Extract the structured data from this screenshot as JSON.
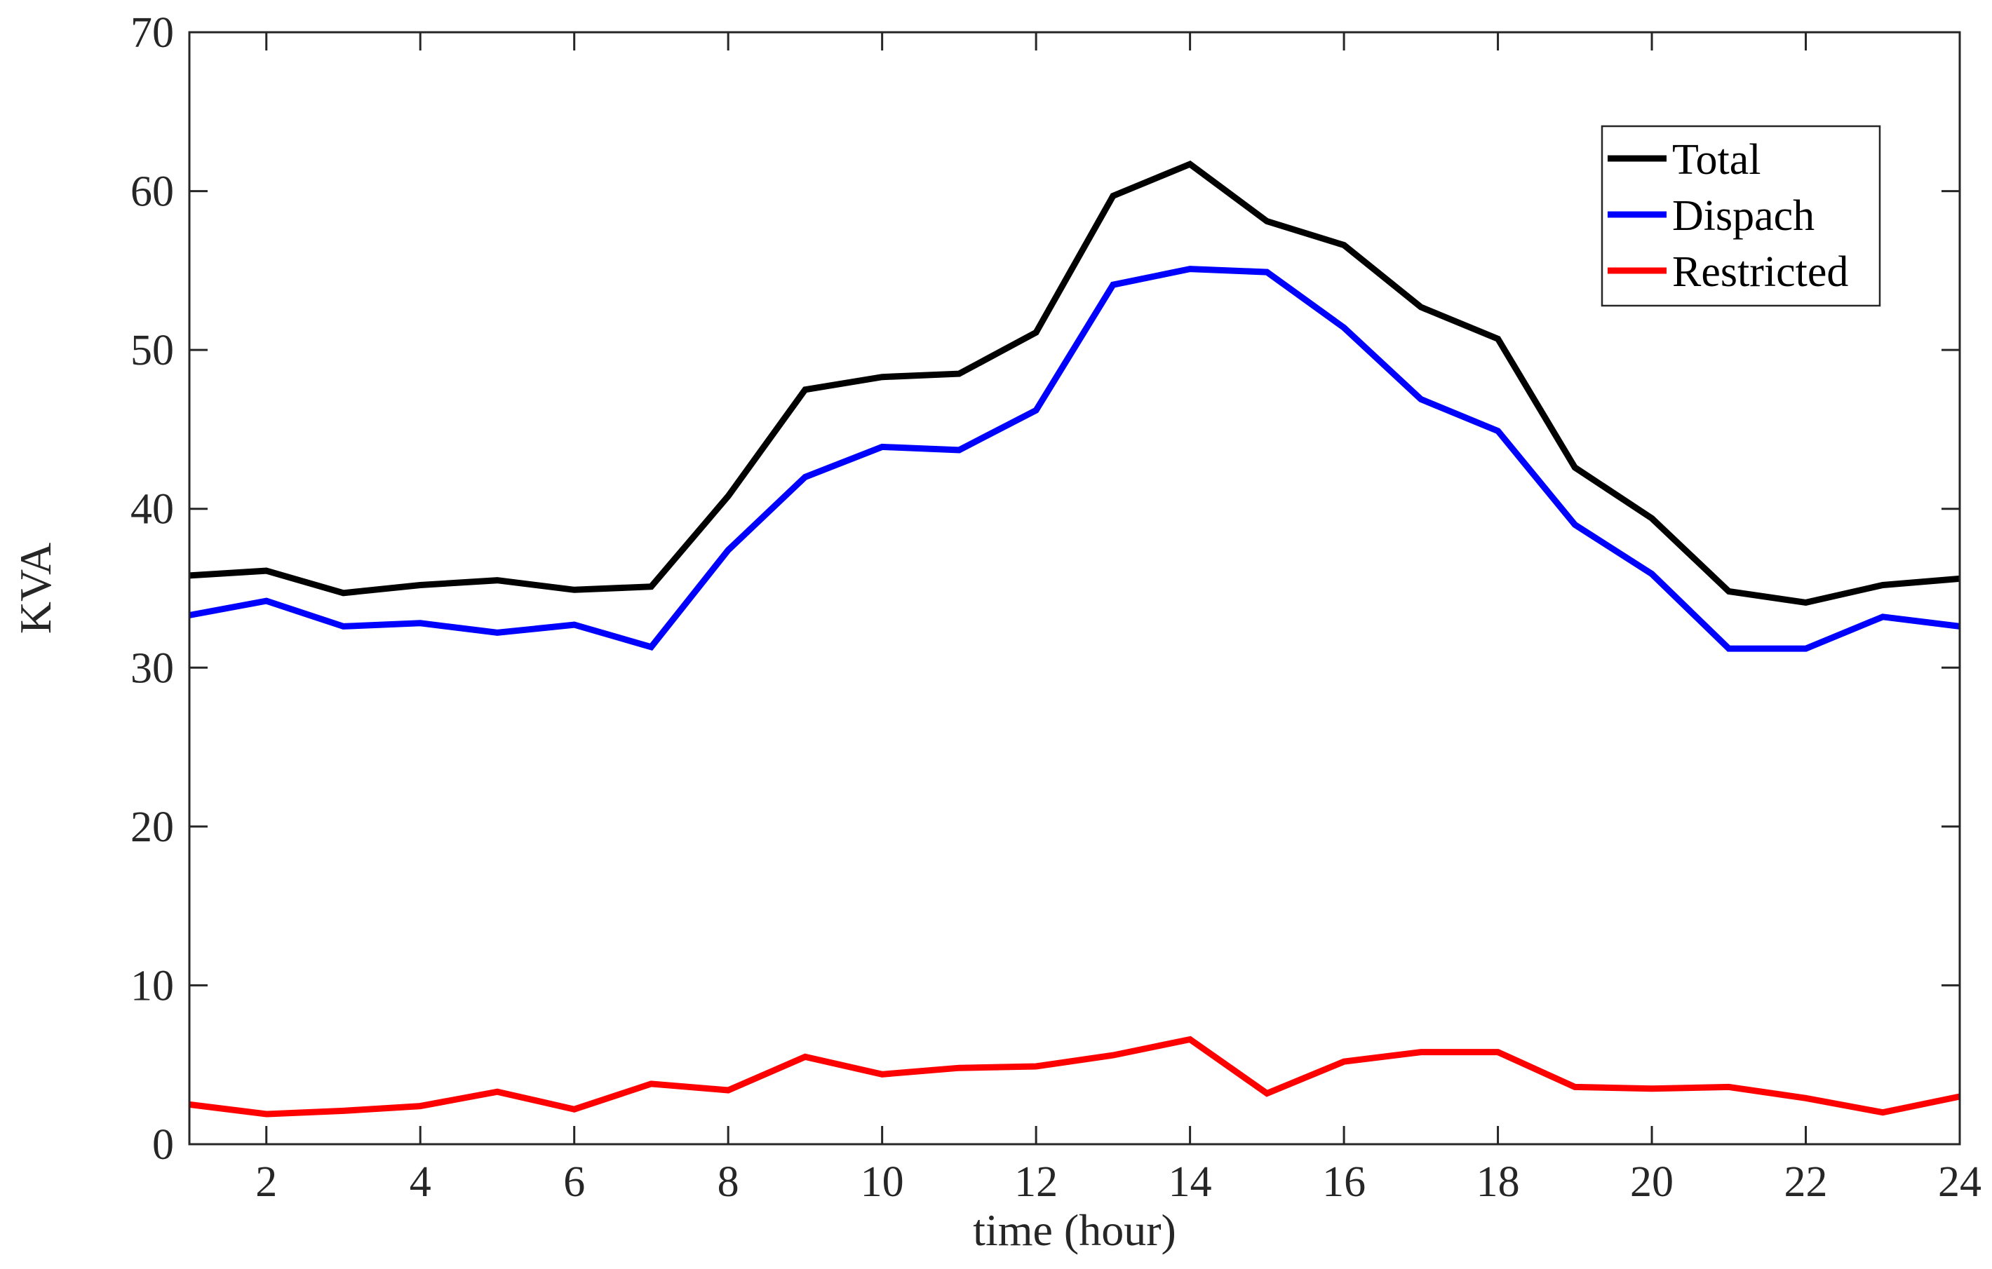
{
  "chart_data": {
    "type": "line",
    "title": "",
    "xlabel": "time (hour)",
    "ylabel": "KVA",
    "xlim": [
      1,
      24
    ],
    "ylim": [
      0,
      70
    ],
    "xticks": [
      2,
      4,
      6,
      8,
      10,
      12,
      14,
      16,
      18,
      20,
      22,
      24
    ],
    "yticks": [
      0,
      10,
      20,
      30,
      40,
      50,
      60,
      70
    ],
    "grid": false,
    "legend_position": "top-right",
    "x": [
      1,
      2,
      3,
      4,
      5,
      6,
      7,
      8,
      9,
      10,
      11,
      12,
      13,
      14,
      15,
      16,
      17,
      18,
      19,
      20,
      21,
      22,
      23,
      24
    ],
    "series": [
      {
        "name": "Total",
        "color": "#000000",
        "values": [
          35.8,
          36.1,
          34.7,
          35.2,
          35.5,
          34.9,
          35.1,
          40.8,
          47.5,
          48.3,
          48.5,
          51.1,
          59.7,
          61.7,
          58.1,
          56.6,
          52.7,
          50.7,
          42.6,
          39.4,
          34.8,
          34.1,
          35.2,
          35.6
        ]
      },
      {
        "name": "Dispach",
        "color": "#0000ff",
        "values": [
          33.3,
          34.2,
          32.6,
          32.8,
          32.2,
          32.7,
          31.3,
          37.4,
          42.0,
          43.9,
          43.7,
          46.2,
          54.1,
          55.1,
          54.9,
          51.4,
          46.9,
          44.9,
          39.0,
          35.9,
          31.2,
          31.2,
          33.2,
          32.6
        ]
      },
      {
        "name": "Restricted",
        "color": "#ff0000",
        "values": [
          2.5,
          1.9,
          2.1,
          2.4,
          3.3,
          2.2,
          3.8,
          3.4,
          5.5,
          4.4,
          4.8,
          4.9,
          5.6,
          6.6,
          3.2,
          5.2,
          5.8,
          5.8,
          3.6,
          3.5,
          3.6,
          2.9,
          2.0,
          3.0
        ]
      }
    ]
  }
}
